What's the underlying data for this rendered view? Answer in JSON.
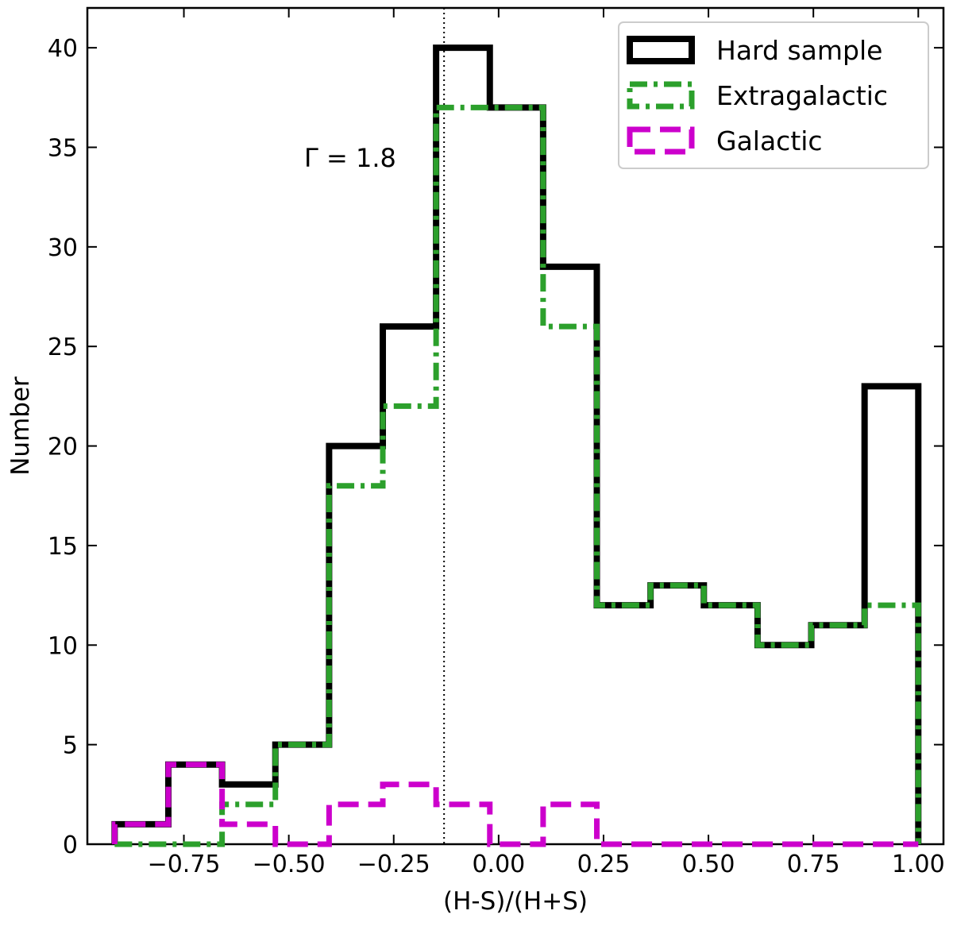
{
  "chart_data": {
    "type": "histogram-step",
    "xlabel": "(H-S)/(H+S)",
    "ylabel": "Number",
    "xlim": [
      -0.98,
      1.06
    ],
    "ylim": [
      0,
      42
    ],
    "x_ticks": [
      -0.75,
      -0.5,
      -0.25,
      0.0,
      0.25,
      0.5,
      0.75,
      1.0
    ],
    "x_tick_labels": [
      "−0.75",
      "−0.50",
      "−0.25",
      "0.00",
      "0.25",
      "0.50",
      "0.75",
      "1.00"
    ],
    "y_ticks": [
      0,
      5,
      10,
      15,
      20,
      25,
      30,
      35,
      40
    ],
    "y_tick_labels": [
      "0",
      "5",
      "10",
      "15",
      "20",
      "25",
      "30",
      "35",
      "40"
    ],
    "bin_edges": [
      -0.915,
      -0.787,
      -0.659,
      -0.532,
      -0.404,
      -0.276,
      -0.149,
      -0.021,
      0.106,
      0.234,
      0.362,
      0.489,
      0.617,
      0.745,
      0.872,
      1.0
    ],
    "series": [
      {
        "name": "Hard sample",
        "color": "#000000",
        "style": "solid",
        "counts": [
          1,
          4,
          3,
          5,
          20,
          26,
          40,
          37,
          29,
          12,
          13,
          12,
          10,
          11,
          23
        ]
      },
      {
        "name": "Extragalactic",
        "color": "#2ca02c",
        "style": "dashdot",
        "counts": [
          0,
          0,
          2,
          5,
          18,
          22,
          37,
          37,
          26,
          12,
          13,
          12,
          10,
          11,
          12
        ]
      },
      {
        "name": "Galactic",
        "color": "#cc00cc",
        "style": "dashed",
        "counts": [
          1,
          4,
          1,
          0,
          2,
          3,
          2,
          0,
          2,
          0,
          0,
          0,
          0,
          0,
          0
        ]
      }
    ],
    "reference_line": {
      "x": -0.13,
      "style": "dotted",
      "label": "Γ = 1.8"
    },
    "legend_position": "top-right",
    "grid": false
  }
}
